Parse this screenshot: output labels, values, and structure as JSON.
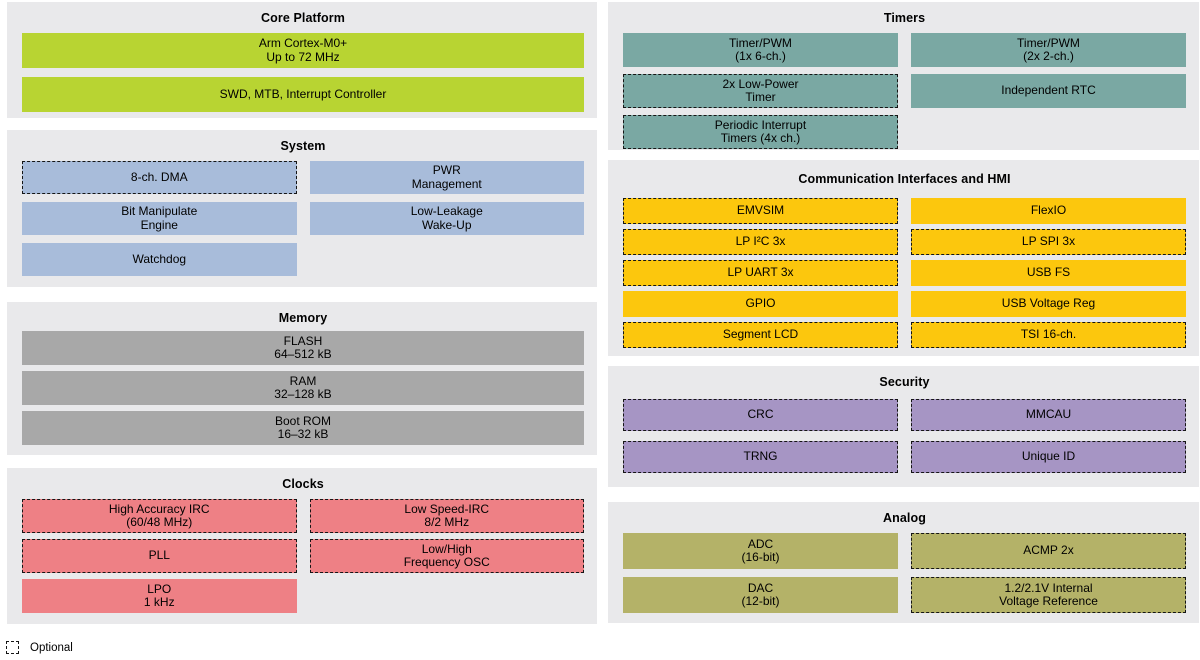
{
  "colors": {
    "panel": "#e9e9eb",
    "green": "#b8d432",
    "blue": "#a8bcda",
    "gray": "#a8a8a8",
    "pink": "#ee8085",
    "teal": "#7aa8a3",
    "yellow": "#fcc70d",
    "purple": "#a695c4",
    "olive": "#b4b268"
  },
  "legend": {
    "label": "Optional"
  },
  "sections": {
    "core": {
      "title": "Core Platform",
      "boxes": {
        "cortex": {
          "l1": "Arm Cortex-M0+",
          "l2": "Up to 72 MHz"
        },
        "swd": {
          "l1": "SWD, MTB, Interrupt Controller"
        }
      }
    },
    "system": {
      "title": "System",
      "boxes": {
        "dma": {
          "l1": "8-ch. DMA",
          "optional": true
        },
        "pwr": {
          "l1": "PWR",
          "l2": "Management"
        },
        "bme": {
          "l1": "Bit Manipulate",
          "l2": "Engine"
        },
        "llwu": {
          "l1": "Low-Leakage",
          "l2": "Wake-Up"
        },
        "watchdog": {
          "l1": "Watchdog"
        }
      }
    },
    "memory": {
      "title": "Memory",
      "boxes": {
        "flash": {
          "l1": "FLASH",
          "l2": "64–512 kB"
        },
        "ram": {
          "l1": "RAM",
          "l2": "32–128 kB"
        },
        "bootrom": {
          "l1": "Boot ROM",
          "l2": "16–32 kB"
        }
      }
    },
    "clocks": {
      "title": "Clocks",
      "boxes": {
        "hirc": {
          "l1": "High Accuracy IRC",
          "l2": "(60/48 MHz)",
          "optional": true
        },
        "lsirc": {
          "l1": "Low Speed-IRC",
          "l2": "8/2 MHz",
          "optional": true
        },
        "pll": {
          "l1": "PLL",
          "optional": true
        },
        "osc": {
          "l1": "Low/High",
          "l2": "Frequency OSC",
          "optional": true
        },
        "lpo": {
          "l1": "LPO",
          "l2": "1 kHz"
        }
      }
    },
    "timers": {
      "title": "Timers",
      "boxes": {
        "tpm6": {
          "l1": "Timer/PWM",
          "l2": "(1x 6-ch.)"
        },
        "tpm2": {
          "l1": "Timer/PWM",
          "l2": "(2x 2-ch.)"
        },
        "lptmr": {
          "l1": "2x Low-Power",
          "l2": "Timer",
          "optional": true
        },
        "rtc": {
          "l1": "Independent RTC"
        },
        "pit": {
          "l1": "Periodic Interrupt",
          "l2": "Timers (4x ch.)",
          "optional": true
        }
      }
    },
    "comm": {
      "title": "Communication Interfaces and HMI",
      "boxes": {
        "emvsim": {
          "l1": "EMVSIM",
          "optional": true
        },
        "flexio": {
          "l1": "FlexIO"
        },
        "lpi2c": {
          "l1": "LP I²C 3x",
          "optional": true
        },
        "lpspi": {
          "l1": "LP SPI 3x",
          "optional": true
        },
        "lpuart": {
          "l1": "LP UART 3x",
          "optional": true
        },
        "usbfs": {
          "l1": "USB FS"
        },
        "gpio": {
          "l1": "GPIO"
        },
        "usbreg": {
          "l1": "USB Voltage Reg"
        },
        "slcd": {
          "l1": "Segment LCD",
          "optional": true
        },
        "tsi": {
          "l1": "TSI 16-ch.",
          "optional": true
        }
      }
    },
    "security": {
      "title": "Security",
      "boxes": {
        "crc": {
          "l1": "CRC",
          "optional": true
        },
        "mmcau": {
          "l1": "MMCAU",
          "optional": true
        },
        "trng": {
          "l1": "TRNG",
          "optional": true
        },
        "uid": {
          "l1": "Unique ID",
          "optional": true
        }
      }
    },
    "analog": {
      "title": "Analog",
      "boxes": {
        "adc": {
          "l1": "ADC",
          "l2": "(16-bit)"
        },
        "acmp": {
          "l1": "ACMP 2x",
          "optional": true
        },
        "dac": {
          "l1": "DAC",
          "l2": "(12-bit)"
        },
        "vref": {
          "l1": "1.2/2.1V Internal",
          "l2": "Voltage Reference",
          "optional": true
        }
      }
    }
  }
}
